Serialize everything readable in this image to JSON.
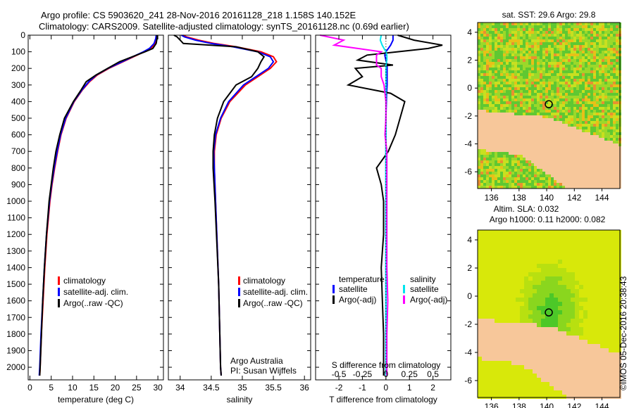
{
  "header": {
    "line1": "Argo profile: CS 5903620_241 28-Nov-2016 20161128_218 1.158S 140.152E",
    "line2": "Climatology: CARS2009. Satellite-adjusted climatology: synTS_20161128.nc (0.69d earlier)"
  },
  "colors": {
    "climatology": "#ff0000",
    "satellite": "#0000ff",
    "argo": "#000000",
    "sal_satellite": "#00e5ee",
    "sal_argo": "#ff00ff",
    "land": "#f7c79a"
  },
  "chart_data": [
    {
      "type": "line",
      "name": "temperature",
      "xlabel": "temperature (deg C)",
      "ylabel": "",
      "xlim": [
        -0.4,
        31.3
      ],
      "ylim": [
        2076,
        0
      ],
      "xticks": [
        "0",
        "5",
        "10",
        "15",
        "20",
        "25",
        "30"
      ],
      "xtick_values": [
        0,
        5,
        10,
        15,
        20,
        25,
        30
      ],
      "yticks": [
        "0",
        "100",
        "200",
        "300",
        "400",
        "500",
        "600",
        "700",
        "800",
        "900",
        "1000",
        "1100",
        "1200",
        "1300",
        "1400",
        "1500",
        "1600",
        "1700",
        "1800",
        "1900",
        "2000"
      ],
      "legend": [
        "climatology",
        "satellite-adj. clim.",
        "Argo(..raw -QC)"
      ],
      "depth": [
        0,
        20,
        50,
        80,
        100,
        130,
        160,
        200,
        240,
        280,
        330,
        400,
        500,
        600,
        700,
        800,
        900,
        1000,
        1200,
        1400,
        1600,
        1800,
        2000,
        2050
      ],
      "series": [
        {
          "name": "climatology",
          "values": [
            29.9,
            29.8,
            29.4,
            28.3,
            26.8,
            24.3,
            21.8,
            18.5,
            15.8,
            14,
            12.3,
            10.4,
            8.5,
            7.3,
            6.5,
            5.8,
            5.2,
            4.7,
            4,
            3.5,
            3.1,
            2.7,
            2.4,
            2.3
          ]
        },
        {
          "name": "satellite-adj. clim.",
          "values": [
            29.6,
            29.5,
            29.1,
            28,
            26.6,
            24.1,
            21.6,
            18.3,
            15.6,
            13.8,
            12.2,
            10.3,
            8.4,
            7.2,
            6.4,
            5.7,
            5.1,
            4.6,
            3.9,
            3.4,
            3,
            2.6,
            2.3,
            2.2
          ]
        },
        {
          "name": "Argo(..raw -QC)",
          "values": [
            29.8,
            29.8,
            29.6,
            28.8,
            27,
            24,
            21,
            18.2,
            15.5,
            13.2,
            12,
            10.2,
            8.1,
            7,
            6.1,
            5.5,
            5,
            4.5,
            3.9,
            3.4,
            3,
            2.7,
            2.4,
            2.3
          ]
        }
      ]
    },
    {
      "type": "line",
      "name": "salinity",
      "xlabel": "salinity",
      "xlim": [
        33.81,
        36.1
      ],
      "ylim": [
        2076,
        0
      ],
      "xticks": [
        "34",
        "34.5",
        "35",
        "35.5",
        "36"
      ],
      "xtick_values": [
        34,
        34.5,
        35,
        35.5,
        36
      ],
      "legend": [
        "climatology",
        "satellite-adj. clim.",
        "Argo(..raw -QC)"
      ],
      "annotation": [
        "Argo Australia",
        "PI: Susan Wijffels"
      ],
      "depth": [
        0,
        10,
        30,
        50,
        70,
        100,
        130,
        160,
        200,
        250,
        300,
        400,
        500,
        600,
        700,
        800,
        1000,
        1500,
        2000,
        2050
      ],
      "series": [
        {
          "name": "climatology",
          "values": [
            34.05,
            34.1,
            34.3,
            34.55,
            34.9,
            35.3,
            35.5,
            35.55,
            35.45,
            35.25,
            35.05,
            34.8,
            34.66,
            34.58,
            34.55,
            34.55,
            34.57,
            34.62,
            34.65,
            34.66
          ]
        },
        {
          "name": "satellite-adj. clim.",
          "values": [
            34.02,
            34.07,
            34.25,
            34.5,
            34.85,
            35.25,
            35.45,
            35.5,
            35.42,
            35.22,
            35.02,
            34.78,
            34.65,
            34.57,
            34.54,
            34.55,
            34.57,
            34.62,
            34.65,
            34.66
          ]
        },
        {
          "name": "Argo(..raw -QC)",
          "values": [
            33.9,
            33.95,
            34.0,
            34.05,
            34.9,
            35.25,
            35.35,
            35.3,
            35.25,
            35.15,
            34.9,
            34.7,
            34.6,
            34.55,
            34.53,
            34.53,
            34.56,
            34.62,
            34.65,
            34.66
          ]
        }
      ]
    },
    {
      "type": "line",
      "name": "differences",
      "xlabel": "T difference from climatology",
      "xlabel2": "S difference from climatology",
      "xlim": [
        -2.99,
        2.76
      ],
      "ylim": [
        2076,
        0
      ],
      "xticks": [
        "-2",
        "-1",
        "0",
        "1",
        "2"
      ],
      "xtick_values": [
        -2,
        -1,
        0,
        1,
        2
      ],
      "sticks": [
        "-0.5",
        "-0.25",
        "0",
        "0.25",
        "0.5"
      ],
      "stick_values": [
        -0.5,
        -0.25,
        0,
        0.25,
        0.5
      ],
      "legend_t": {
        "title": "temperature",
        "items": [
          "satellite",
          "Argo(-adj)"
        ]
      },
      "legend_s": {
        "title": "salinity",
        "items": [
          "satellite",
          "Argo(-adj)"
        ]
      },
      "depth": [
        0,
        30,
        60,
        80,
        100,
        120,
        150,
        180,
        200,
        250,
        300,
        350,
        400,
        500,
        600,
        700,
        800,
        900,
        1000,
        1200,
        1400,
        1600,
        1800,
        2000,
        2050
      ],
      "series": [
        {
          "name": "temperature satellite",
          "values": [
            0.3,
            0.3,
            0.2,
            0.1,
            0,
            -0.05,
            0,
            0.05,
            0.05,
            0.05,
            0.05,
            0.03,
            0.02,
            0,
            0,
            0,
            0,
            0,
            0,
            0,
            0,
            0,
            0,
            0,
            0
          ]
        },
        {
          "name": "temperature Argo(-adj)",
          "values": [
            0.5,
            1.2,
            2.4,
            1.8,
            0.5,
            -0.8,
            -1.2,
            0.3,
            -1.3,
            -1,
            -1.6,
            0.2,
            0.8,
            0.6,
            0.4,
            0.1,
            -0.4,
            -0.2,
            -0.1,
            -0.1,
            -0.2,
            -0.15,
            -0.1,
            -0.1,
            -0.1
          ]
        },
        {
          "name": "salinity satellite",
          "values": [
            -0.05,
            -0.06,
            -0.04,
            -0.02,
            0,
            0.01,
            0.01,
            0,
            0,
            0,
            0,
            0,
            0,
            0,
            0,
            0,
            0,
            0,
            0,
            0,
            0,
            0,
            0,
            0,
            0
          ]
        },
        {
          "name": "salinity Argo(-adj)",
          "values": [
            -0.7,
            -0.45,
            -0.55,
            -0.3,
            -0.05,
            -0.1,
            -0.1,
            -0.1,
            -0.05,
            -0.05,
            -0.02,
            -0.01,
            0,
            0,
            -0.01,
            0.01,
            0.01,
            0.01,
            0.01,
            0.01,
            0.01,
            0.02,
            0.01,
            0.01,
            0.01
          ]
        }
      ]
    },
    {
      "type": "heatmap",
      "name": "sst-map",
      "title": "sat. SST: 29.6 Argo: 29.8",
      "xlim": [
        135,
        145.3
      ],
      "ylim": [
        -7.2,
        4.7
      ],
      "xticks": [
        "136",
        "138",
        "140",
        "142",
        "144"
      ],
      "xtick_values": [
        136,
        138,
        140,
        142,
        144
      ],
      "yticks": [
        "4",
        "2",
        "0",
        "-2",
        "-4",
        "-6"
      ],
      "ytick_values": [
        4,
        2,
        0,
        -2,
        -4,
        -6
      ],
      "float": {
        "lon": 140.152,
        "lat": -1.158
      }
    },
    {
      "type": "heatmap",
      "name": "sla-map",
      "title1": "Altim. SLA: 0.032",
      "title2": "Argo h1000: 0.11 h2000: 0.082",
      "xlim": [
        135,
        145.3
      ],
      "ylim": [
        -7.2,
        4.7
      ],
      "xticks": [
        "136",
        "138",
        "140",
        "142",
        "144"
      ],
      "xtick_values": [
        136,
        138,
        140,
        142,
        144
      ],
      "yticks": [
        "4",
        "2",
        "0",
        "-2",
        "-4",
        "-6"
      ],
      "ytick_values": [
        4,
        2,
        0,
        -2,
        -4,
        -6
      ],
      "float": {
        "lon": 140.152,
        "lat": -1.158
      }
    }
  ],
  "footer": "©IMOS 05-Dec-2016 20:38:43"
}
